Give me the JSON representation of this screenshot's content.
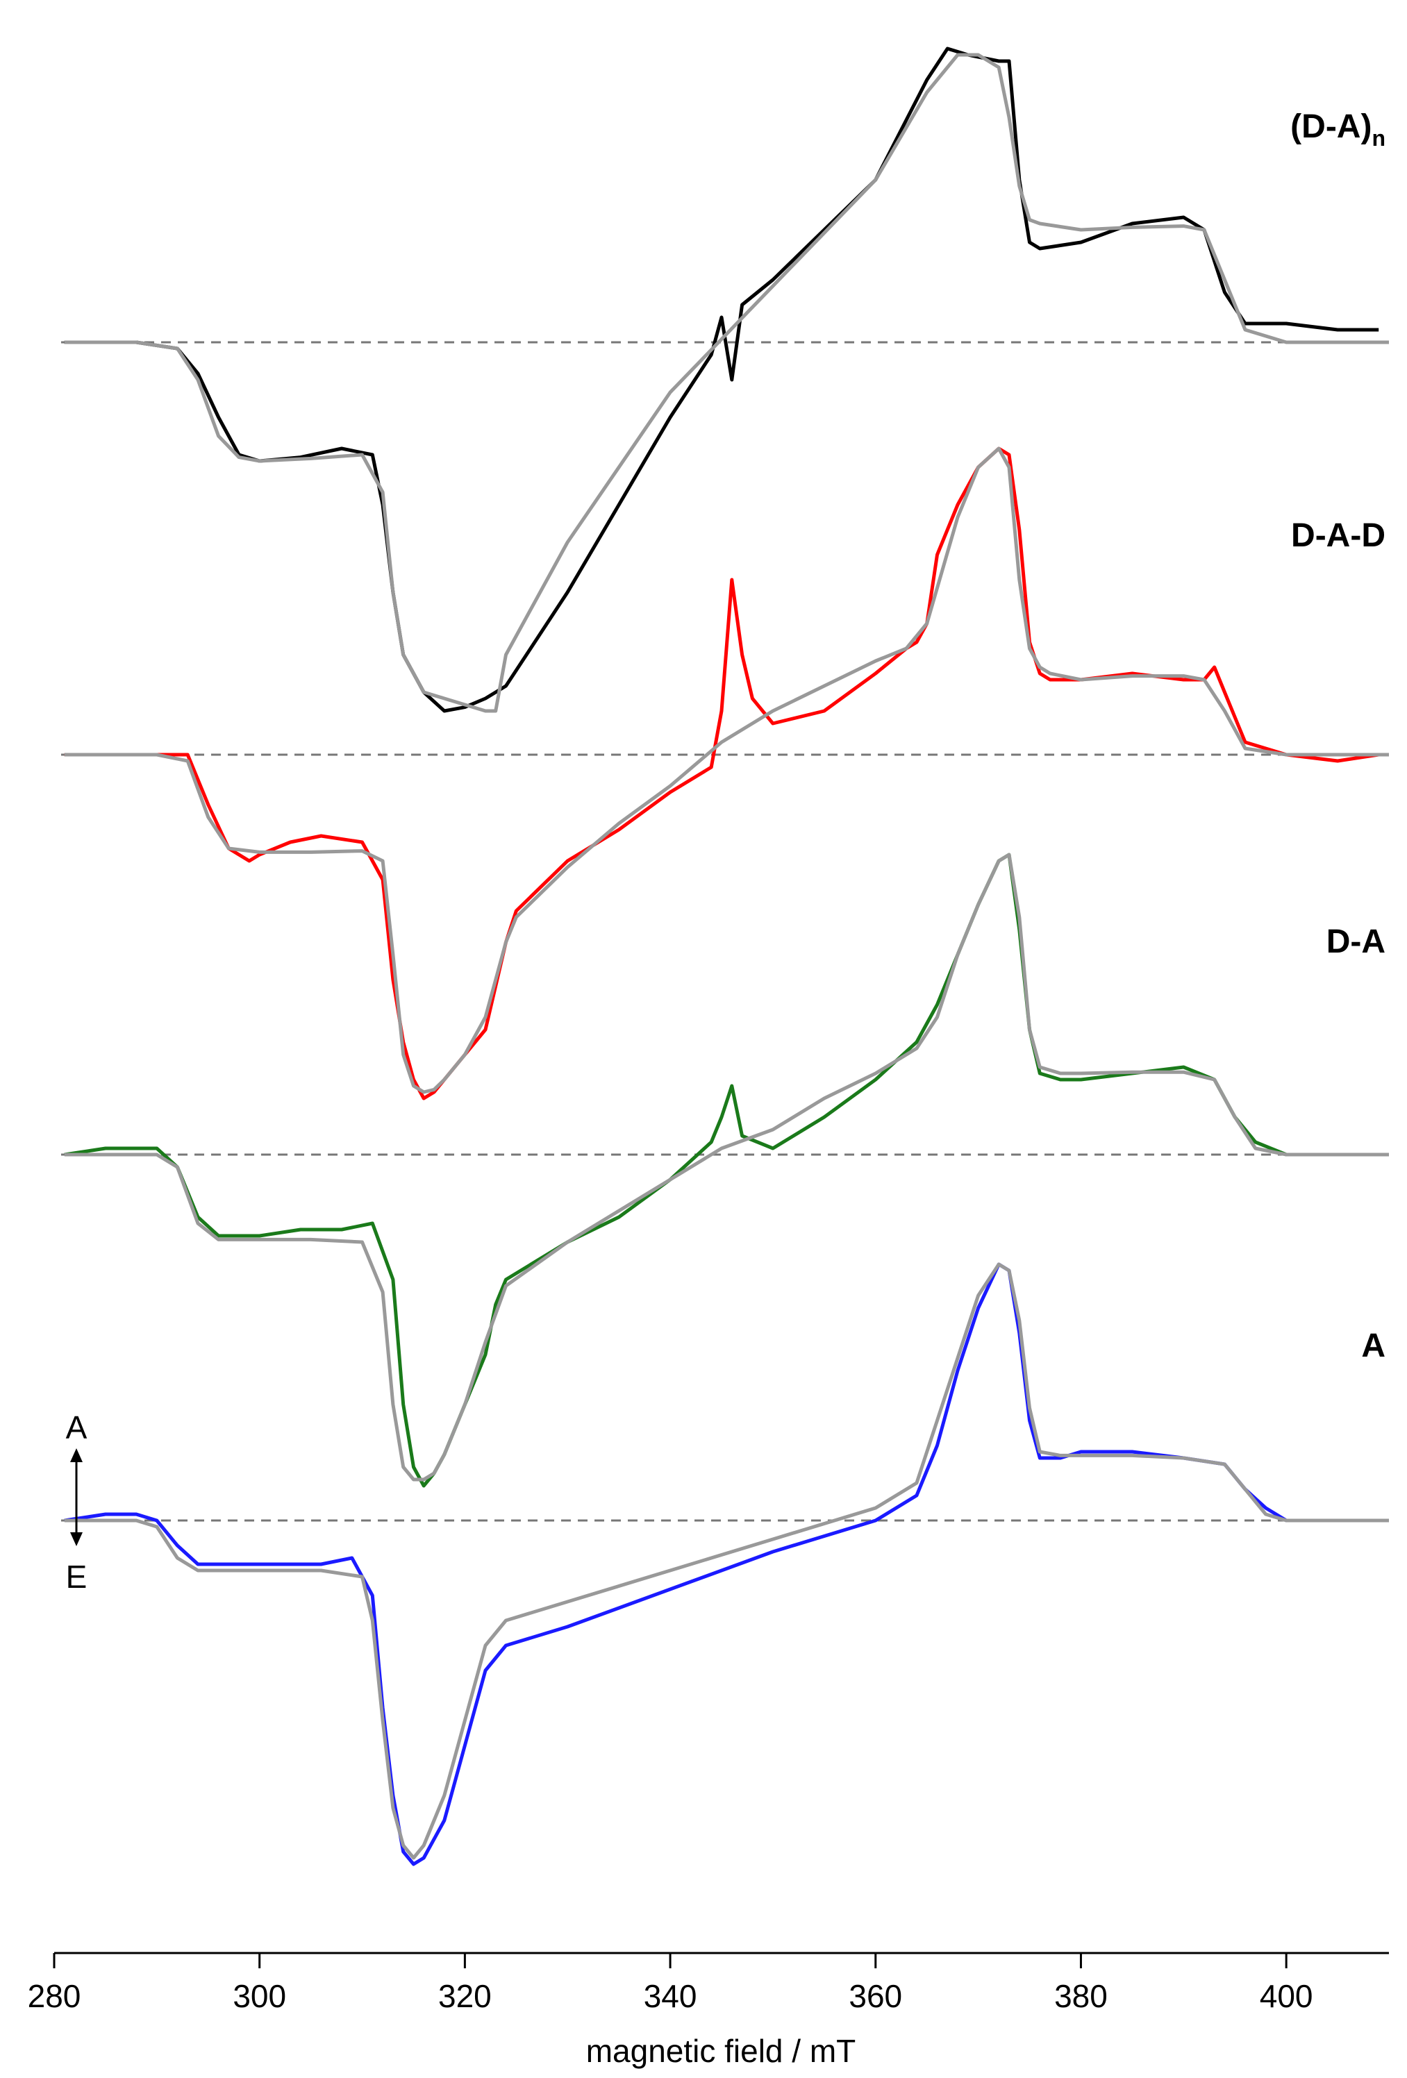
{
  "chart_data": {
    "type": "line",
    "title": "",
    "xlabel": "magnetic field / mT",
    "ylabel": "",
    "xlim": [
      280,
      410
    ],
    "xticks": [
      280,
      300,
      320,
      340,
      360,
      380,
      400
    ],
    "grid": false,
    "legend": "none",
    "intensity_arrow": {
      "top": "A",
      "bottom": "E"
    },
    "series": [
      {
        "name": "(D-A)",
        "name_subscript": "n",
        "color": "#000000",
        "fit_color": "#999999",
        "x": [
          281,
          284,
          288,
          292,
          294,
          296,
          298,
          300,
          304,
          308,
          311,
          312,
          313,
          314,
          316,
          318,
          320,
          322,
          324,
          326,
          330,
          335,
          340,
          344,
          345,
          346,
          347,
          350,
          355,
          360,
          365,
          367,
          369,
          372,
          373,
          374,
          375,
          376,
          380,
          385,
          390,
          392,
          394,
          396,
          400,
          405,
          409
        ],
        "y": [
          0,
          0,
          0,
          -0.05,
          -0.25,
          -0.6,
          -0.9,
          -0.95,
          -0.92,
          -0.85,
          -0.9,
          -1.3,
          -2.0,
          -2.5,
          -2.8,
          -2.95,
          -2.92,
          -2.85,
          -2.75,
          -2.5,
          -2.0,
          -1.3,
          -0.6,
          -0.1,
          0.2,
          -0.3,
          0.3,
          0.5,
          0.9,
          1.3,
          2.1,
          2.35,
          2.3,
          2.25,
          2.25,
          1.3,
          0.8,
          0.75,
          0.8,
          0.95,
          1.0,
          0.9,
          0.4,
          0.15,
          0.15,
          0.1,
          0.1
        ],
        "fit_x": [
          281,
          288,
          292,
          294,
          296,
          298,
          300,
          305,
          310,
          312,
          313,
          314,
          316,
          318,
          320,
          322,
          323,
          324,
          330,
          340,
          350,
          360,
          365,
          368,
          370,
          372,
          373,
          374,
          375,
          376,
          380,
          385,
          390,
          392,
          394,
          396,
          400,
          405,
          410
        ],
        "fit_y": [
          0,
          0,
          -0.05,
          -0.3,
          -0.75,
          -0.92,
          -0.95,
          -0.93,
          -0.9,
          -1.2,
          -2.0,
          -2.5,
          -2.8,
          -2.85,
          -2.9,
          -2.95,
          -2.95,
          -2.5,
          -1.6,
          -0.4,
          0.45,
          1.3,
          2.0,
          2.3,
          2.3,
          2.2,
          1.8,
          1.25,
          0.98,
          0.95,
          0.9,
          0.92,
          0.93,
          0.9,
          0.5,
          0.1,
          0.0,
          0.0,
          0.0
        ]
      },
      {
        "name": "D-A-D",
        "name_subscript": "",
        "color": "#ff0000",
        "fit_color": "#999999",
        "x": [
          281,
          285,
          290,
          293,
          295,
          297,
          299,
          300,
          303,
          306,
          310,
          312,
          313,
          314,
          315,
          316,
          317,
          318,
          320,
          322,
          324,
          325,
          330,
          335,
          340,
          344,
          345,
          346,
          347,
          348,
          350,
          355,
          360,
          363,
          364,
          365,
          366,
          368,
          370,
          372,
          373,
          374,
          375,
          376,
          377,
          380,
          385,
          390,
          392,
          393,
          394,
          396,
          400,
          405,
          409
        ],
        "y": [
          0,
          0,
          0,
          0,
          -0.4,
          -0.75,
          -0.85,
          -0.8,
          -0.7,
          -0.65,
          -0.7,
          -1.0,
          -1.8,
          -2.3,
          -2.6,
          -2.75,
          -2.7,
          -2.6,
          -2.4,
          -2.2,
          -1.5,
          -1.25,
          -0.85,
          -0.6,
          -0.3,
          -0.1,
          0.35,
          1.4,
          0.8,
          0.45,
          0.25,
          0.35,
          0.65,
          0.85,
          0.9,
          1.05,
          1.6,
          2.0,
          2.3,
          2.45,
          2.4,
          1.8,
          0.9,
          0.65,
          0.6,
          0.6,
          0.65,
          0.6,
          0.6,
          0.7,
          0.5,
          0.1,
          0.0,
          -0.05,
          0.0
        ],
        "fit_x": [
          281,
          290,
          293,
          295,
          297,
          300,
          305,
          310,
          312,
          313,
          314,
          315,
          316,
          317,
          318,
          320,
          322,
          324,
          325,
          330,
          335,
          340,
          345,
          350,
          355,
          360,
          363,
          365,
          368,
          370,
          372,
          373,
          374,
          375,
          376,
          377,
          380,
          385,
          390,
          392,
          394,
          396,
          400,
          405,
          410
        ],
        "fit_y": [
          0,
          0,
          -0.05,
          -0.5,
          -0.75,
          -0.78,
          -0.78,
          -0.77,
          -0.85,
          -1.6,
          -2.4,
          -2.65,
          -2.7,
          -2.68,
          -2.6,
          -2.4,
          -2.1,
          -1.5,
          -1.3,
          -0.9,
          -0.55,
          -0.25,
          0.1,
          0.35,
          0.55,
          0.75,
          0.85,
          1.05,
          1.9,
          2.3,
          2.45,
          2.3,
          1.4,
          0.85,
          0.7,
          0.65,
          0.6,
          0.63,
          0.63,
          0.6,
          0.35,
          0.05,
          0.0,
          0.0,
          0.0
        ]
      },
      {
        "name": "D-A",
        "name_subscript": "",
        "color": "#1a7a1a",
        "fit_color": "#999999",
        "x": [
          281,
          285,
          290,
          292,
          294,
          296,
          300,
          304,
          308,
          311,
          313,
          314,
          315,
          316,
          317,
          318,
          320,
          322,
          323,
          324,
          330,
          335,
          340,
          344,
          345,
          346,
          347,
          350,
          355,
          360,
          364,
          366,
          368,
          370,
          372,
          373,
          374,
          375,
          376,
          378,
          380,
          385,
          390,
          393,
          395,
          397,
          400,
          405,
          409
        ],
        "y": [
          0,
          0.05,
          0.05,
          -0.1,
          -0.5,
          -0.65,
          -0.65,
          -0.6,
          -0.6,
          -0.55,
          -1.0,
          -2.0,
          -2.5,
          -2.65,
          -2.55,
          -2.4,
          -2.0,
          -1.6,
          -1.2,
          -1.0,
          -0.7,
          -0.5,
          -0.2,
          0.1,
          0.3,
          0.55,
          0.15,
          0.05,
          0.3,
          0.6,
          0.9,
          1.2,
          1.6,
          2.0,
          2.35,
          2.4,
          1.8,
          1.0,
          0.65,
          0.6,
          0.6,
          0.65,
          0.7,
          0.6,
          0.3,
          0.1,
          0.0,
          0.0,
          0.0
        ],
        "fit_x": [
          281,
          290,
          292,
          294,
          296,
          300,
          305,
          310,
          312,
          313,
          314,
          315,
          316,
          317,
          318,
          320,
          322,
          324,
          330,
          340,
          345,
          350,
          355,
          360,
          364,
          366,
          368,
          370,
          372,
          373,
          374,
          375,
          376,
          378,
          380,
          385,
          390,
          393,
          395,
          397,
          400,
          405,
          410
        ],
        "fit_y": [
          0,
          0,
          -0.1,
          -0.55,
          -0.68,
          -0.68,
          -0.68,
          -0.7,
          -1.1,
          -2.0,
          -2.5,
          -2.6,
          -2.6,
          -2.55,
          -2.4,
          -2.0,
          -1.5,
          -1.05,
          -0.7,
          -0.2,
          0.05,
          0.2,
          0.45,
          0.65,
          0.85,
          1.1,
          1.6,
          2.0,
          2.35,
          2.4,
          1.9,
          1.0,
          0.7,
          0.65,
          0.65,
          0.66,
          0.66,
          0.6,
          0.3,
          0.05,
          0.0,
          0.0,
          0.0
        ]
      },
      {
        "name": "A",
        "name_subscript": "",
        "color": "#1a1aff",
        "fit_color": "#999999",
        "x": [
          281,
          285,
          288,
          290,
          292,
          294,
          298,
          302,
          306,
          309,
          311,
          312,
          313,
          314,
          315,
          316,
          318,
          320,
          322,
          324,
          330,
          340,
          350,
          360,
          364,
          366,
          368,
          370,
          372,
          373,
          374,
          375,
          376,
          378,
          380,
          385,
          390,
          394,
          396,
          398,
          400,
          405,
          409
        ],
        "y": [
          0,
          0.05,
          0.05,
          0.0,
          -0.2,
          -0.35,
          -0.35,
          -0.35,
          -0.35,
          -0.3,
          -0.6,
          -1.5,
          -2.2,
          -2.65,
          -2.75,
          -2.7,
          -2.4,
          -1.8,
          -1.2,
          -1.0,
          -0.85,
          -0.55,
          -0.25,
          0.0,
          0.2,
          0.6,
          1.2,
          1.7,
          2.05,
          2.0,
          1.5,
          0.8,
          0.5,
          0.5,
          0.55,
          0.55,
          0.5,
          0.45,
          0.25,
          0.1,
          0.0,
          0.0,
          0.0
        ],
        "fit_x": [
          281,
          288,
          290,
          292,
          294,
          298,
          302,
          306,
          310,
          311,
          312,
          313,
          314,
          315,
          316,
          318,
          320,
          322,
          324,
          330,
          340,
          350,
          360,
          364,
          366,
          368,
          370,
          372,
          373,
          374,
          375,
          376,
          378,
          380,
          385,
          390,
          394,
          396,
          398,
          400,
          405,
          410
        ],
        "fit_y": [
          0,
          0,
          -0.05,
          -0.3,
          -0.4,
          -0.4,
          -0.4,
          -0.4,
          -0.45,
          -0.8,
          -1.6,
          -2.3,
          -2.6,
          -2.7,
          -2.6,
          -2.2,
          -1.6,
          -1.0,
          -0.8,
          -0.65,
          -0.4,
          -0.15,
          0.1,
          0.3,
          0.8,
          1.3,
          1.8,
          2.05,
          2.0,
          1.6,
          0.9,
          0.55,
          0.52,
          0.52,
          0.52,
          0.5,
          0.45,
          0.25,
          0.05,
          0.0,
          0.0,
          0.0
        ]
      }
    ]
  }
}
